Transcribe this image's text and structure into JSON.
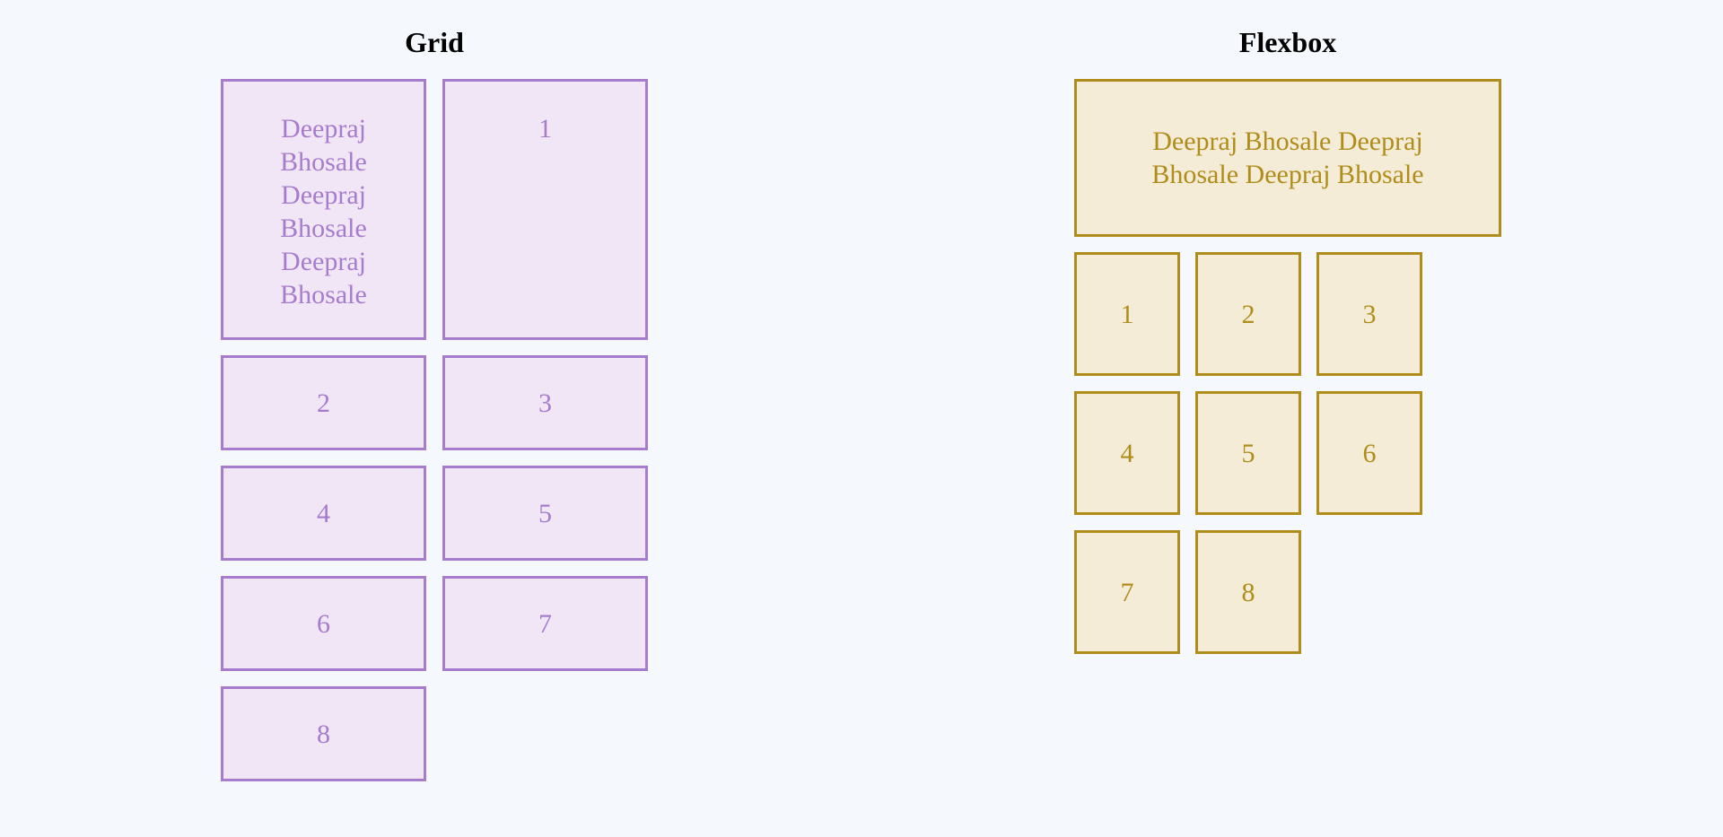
{
  "grid": {
    "title": "Grid",
    "items": [
      "Deepraj Bhosale Deepraj Bhosale Deepraj Bhosale",
      "1",
      "2",
      "3",
      "4",
      "5",
      "6",
      "7",
      "8"
    ]
  },
  "flexbox": {
    "title": "Flexbox",
    "items": [
      "Deepraj Bhosale Deepraj Bhosale Deepraj Bhosale",
      "1",
      "2",
      "3",
      "4",
      "5",
      "6",
      "7",
      "8"
    ]
  },
  "colors": {
    "background": "#f5f8fc",
    "grid_border": "#a77ccd",
    "grid_fill": "#f1e6f6",
    "flex_border": "#b08d1a",
    "flex_fill": "#f4ecd6"
  }
}
